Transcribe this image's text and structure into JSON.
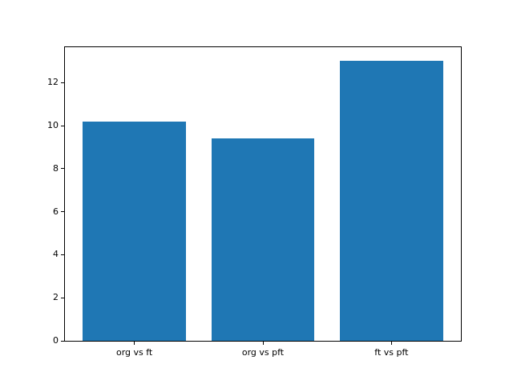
{
  "chart_data": {
    "type": "bar",
    "title": "",
    "xlabel": "",
    "ylabel": "",
    "categories": [
      "org vs ft",
      "org vs pft",
      "ft vs pft"
    ],
    "values": [
      10.2,
      9.4,
      13.0
    ],
    "bar_color": "#1f77b4",
    "bar_width": 0.8,
    "xlim": [
      -0.54,
      2.54
    ],
    "ylim": [
      0,
      13.65
    ],
    "yticks": [
      0,
      2,
      4,
      6,
      8,
      10,
      12
    ],
    "ytick_labels": [
      "0",
      "2",
      "4",
      "6",
      "8",
      "10",
      "12"
    ],
    "grid": false,
    "legend": false,
    "background": "#ffffff",
    "spine_color": "#000000",
    "text_color": "#000000"
  }
}
